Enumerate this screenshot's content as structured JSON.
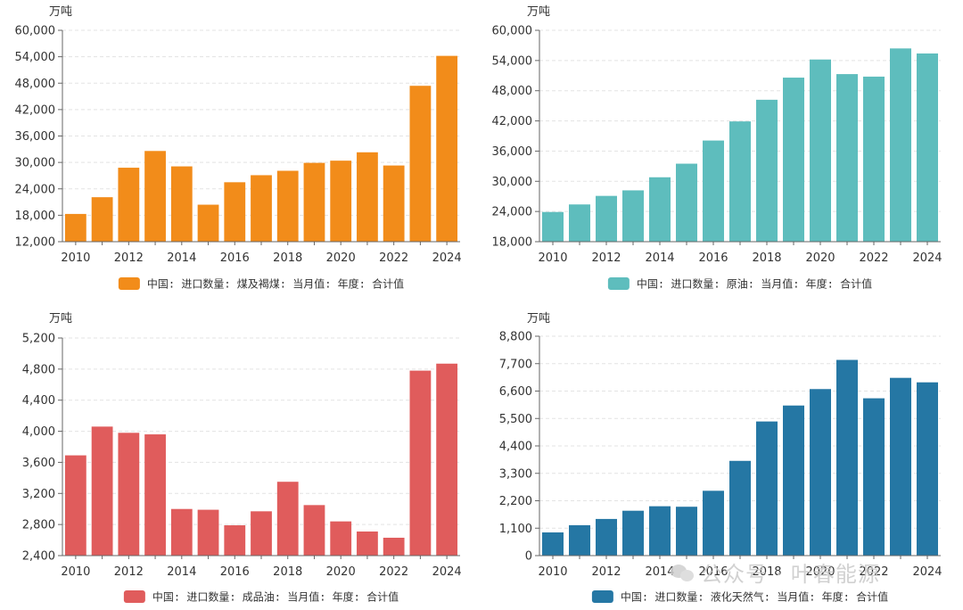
{
  "chart_data": [
    {
      "type": "bar",
      "unit": "万吨",
      "color": "#f28c1a",
      "categories": [
        "2010",
        "2011",
        "2012",
        "2013",
        "2014",
        "2015",
        "2016",
        "2017",
        "2018",
        "2019",
        "2020",
        "2021",
        "2022",
        "2023",
        "2024"
      ],
      "values": [
        18300,
        22100,
        28800,
        32600,
        29100,
        20400,
        25500,
        27100,
        28100,
        29900,
        30400,
        32300,
        29300,
        47400,
        54200
      ],
      "yticks": [
        12000,
        18000,
        24000,
        30000,
        36000,
        42000,
        48000,
        54000,
        60000
      ],
      "ytick_labels": [
        "12,000",
        "18,000",
        "24,000",
        "30,000",
        "36,000",
        "42,000",
        "48,000",
        "54,000",
        "60,000"
      ],
      "ylim": [
        12000,
        60000
      ],
      "xtick_labels": [
        "2010",
        "2012",
        "2014",
        "2016",
        "2018",
        "2020",
        "2022",
        "2024"
      ],
      "legend": "中国: 进口数量: 煤及褐煤: 当月值: 年度: 合计值",
      "grid": true
    },
    {
      "type": "bar",
      "unit": "万吨",
      "color": "#5ebdbd",
      "categories": [
        "2010",
        "2011",
        "2012",
        "2013",
        "2014",
        "2015",
        "2016",
        "2017",
        "2018",
        "2019",
        "2020",
        "2021",
        "2022",
        "2023",
        "2024"
      ],
      "values": [
        23900,
        25400,
        27100,
        28200,
        30800,
        33500,
        38100,
        41900,
        46200,
        50600,
        54200,
        51300,
        50800,
        56400,
        55400
      ],
      "yticks": [
        18000,
        24000,
        30000,
        36000,
        42000,
        48000,
        54000,
        60000
      ],
      "ytick_labels": [
        "18,000",
        "24,000",
        "30,000",
        "36,000",
        "42,000",
        "48,000",
        "54,000",
        "60,000"
      ],
      "ylim": [
        18000,
        60000
      ],
      "xtick_labels": [
        "2010",
        "2012",
        "2014",
        "2016",
        "2018",
        "2020",
        "2022",
        "2024"
      ],
      "legend": "中国: 进口数量: 原油: 当月值: 年度: 合计值",
      "grid": true
    },
    {
      "type": "bar",
      "unit": "万吨",
      "color": "#e05c5c",
      "categories": [
        "2010",
        "2011",
        "2012",
        "2013",
        "2014",
        "2015",
        "2016",
        "2017",
        "2018",
        "2019",
        "2020",
        "2021",
        "2022",
        "2023",
        "2024"
      ],
      "values": [
        3690,
        4060,
        3980,
        3960,
        3000,
        2990,
        2790,
        2970,
        3350,
        3050,
        2840,
        2710,
        2630,
        4780,
        4870
      ],
      "yticks": [
        2400,
        2800,
        3200,
        3600,
        4000,
        4400,
        4800,
        5200
      ],
      "ytick_labels": [
        "2,400",
        "2,800",
        "3,200",
        "3,600",
        "4,000",
        "4,400",
        "4,800",
        "5,200"
      ],
      "ylim": [
        2400,
        5200
      ],
      "xtick_labels": [
        "2010",
        "2012",
        "2014",
        "2016",
        "2018",
        "2020",
        "2022",
        "2024"
      ],
      "legend": "中国: 进口数量: 成品油: 当月值: 年度: 合计值",
      "grid": true
    },
    {
      "type": "bar",
      "unit": "万吨",
      "color": "#2577a4",
      "categories": [
        "2010",
        "2011",
        "2012",
        "2013",
        "2014",
        "2015",
        "2016",
        "2017",
        "2018",
        "2019",
        "2020",
        "2021",
        "2022",
        "2023",
        "2024"
      ],
      "values": [
        930,
        1220,
        1470,
        1800,
        1980,
        1960,
        2600,
        3800,
        5380,
        6020,
        6680,
        7850,
        6310,
        7130,
        6950
      ],
      "yticks": [
        0,
        1100,
        2200,
        3300,
        4400,
        5500,
        6600,
        7700,
        8800
      ],
      "ytick_labels": [
        "0",
        "1,100",
        "2,200",
        "3,300",
        "4,400",
        "5,500",
        "6,600",
        "7,700",
        "8,800"
      ],
      "ylim": [
        0,
        8800
      ],
      "xtick_labels": [
        "2010",
        "2012",
        "2014",
        "2016",
        "2018",
        "2020",
        "2022",
        "2024"
      ],
      "legend": "中国: 进口数量: 液化天然气: 当月值: 年度: 合计值",
      "grid": true
    }
  ],
  "watermark": "公众号 · 叶春能源"
}
